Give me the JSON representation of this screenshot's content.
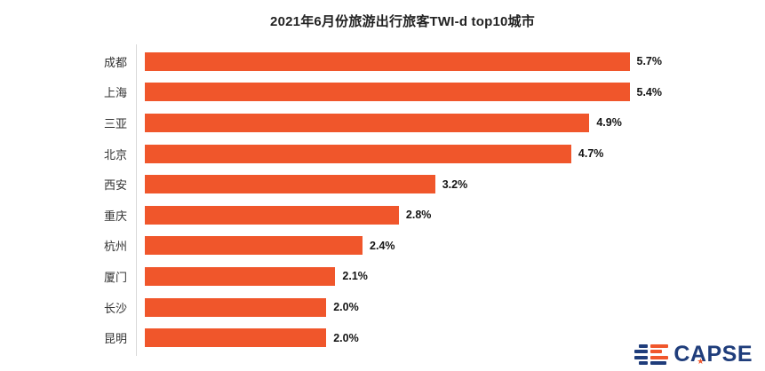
{
  "header": {
    "title": "2021年6月份旅游出行旅客TWI-d top10城市"
  },
  "chart_data": {
    "type": "bar",
    "orientation": "horizontal",
    "title": "2021年6月份旅游出行旅客TWI-d top10城市",
    "categories": [
      "成都",
      "上海",
      "三亚",
      "北京",
      "西安",
      "重庆",
      "杭州",
      "厦门",
      "长沙",
      "昆明"
    ],
    "values": [
      5.7,
      5.4,
      4.9,
      4.7,
      3.2,
      2.8,
      2.4,
      2.1,
      2.0,
      2.0
    ],
    "value_labels": [
      "5.7%",
      "5.4%",
      "4.9%",
      "4.7%",
      "3.2%",
      "2.8%",
      "2.4%",
      "2.1%",
      "2.0%",
      "2.0%"
    ],
    "xlabel": "",
    "ylabel": "",
    "xlim": [
      0,
      5.7
    ],
    "sort": "descending",
    "grid": false,
    "legend": false,
    "bar_color": "#F0562B"
  },
  "colors": {
    "bar": "#F0562B",
    "navy": "#1F3D7B",
    "axis_line": "#D9D9D9",
    "title_text": "#222222",
    "label_text": "#333333",
    "value_text": "#141414"
  },
  "logo": {
    "text": "CAPSE",
    "star_glyph": "★"
  }
}
